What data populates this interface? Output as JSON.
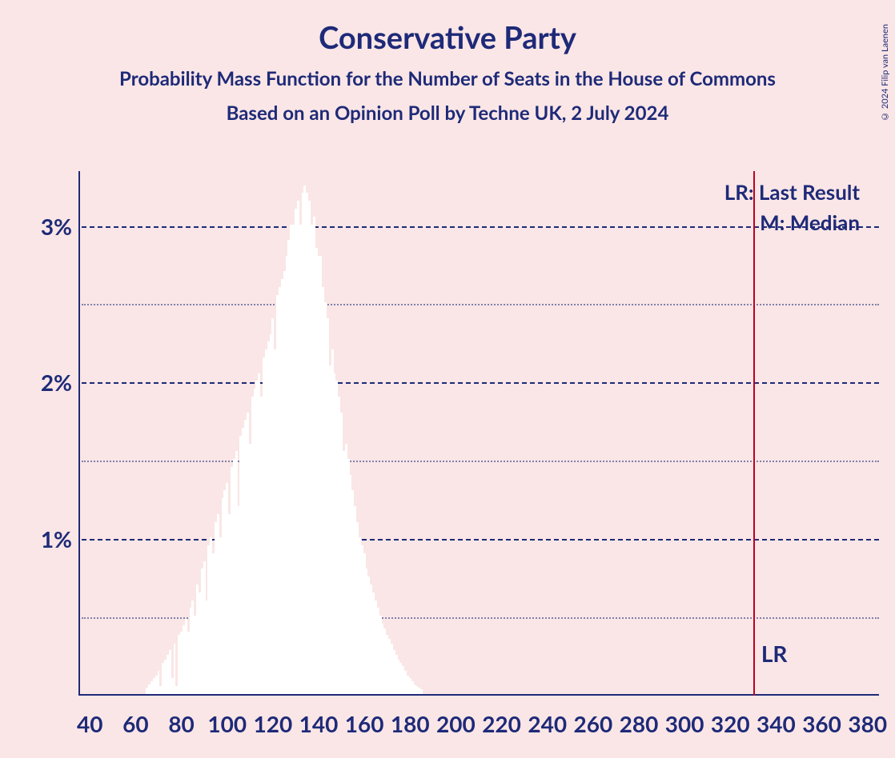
{
  "title": "Conservative Party",
  "subtitle": "Probability Mass Function for the Number of Seats in the House of Commons",
  "subtitle2": "Based on an Opinion Poll by Techne UK, 2 July 2024",
  "copyright": "© 2024 Filip van Laenen",
  "legend": {
    "lr": "LR: Last Result",
    "m": "M: Median"
  },
  "chart": {
    "type": "bar",
    "background_color": "#fae6e6",
    "axis_color": "#1e2a78",
    "text_color": "#1e2a78",
    "grid_major_color": "#1e2a78",
    "grid_minor_color": "rgba(30,42,120,0.55)",
    "lr_line_color": "#c00020",
    "bar_color": "#ffffff",
    "title_fontsize": 38,
    "subtitle_fontsize": 24,
    "tick_fontsize": 28,
    "legend_fontsize": 26,
    "xlim": [
      35,
      385
    ],
    "ylim": [
      0,
      3.35
    ],
    "y_major_ticks": [
      1,
      2,
      3
    ],
    "y_minor_ticks": [
      0.5,
      1.5,
      2.5
    ],
    "y_tick_labels": [
      "1%",
      "2%",
      "3%"
    ],
    "x_ticks": [
      40,
      60,
      80,
      100,
      120,
      140,
      160,
      180,
      200,
      220,
      240,
      260,
      280,
      300,
      320,
      340,
      360,
      380
    ],
    "x_tick_labels": [
      "40",
      "60",
      "80",
      "100",
      "120",
      "140",
      "160",
      "180",
      "200",
      "220",
      "240",
      "260",
      "280",
      "300",
      "320",
      "340",
      "360",
      "380"
    ],
    "lr_value": 330,
    "lr_marker_label": "LR",
    "bar_width_units": 1,
    "bars": [
      {
        "x": 65,
        "y": 0.04
      },
      {
        "x": 66,
        "y": 0.06
      },
      {
        "x": 67,
        "y": 0.08
      },
      {
        "x": 68,
        "y": 0.1
      },
      {
        "x": 69,
        "y": 0.12
      },
      {
        "x": 70,
        "y": 0.15
      },
      {
        "x": 71,
        "y": 0.05
      },
      {
        "x": 72,
        "y": 0.2
      },
      {
        "x": 73,
        "y": 0.22
      },
      {
        "x": 74,
        "y": 0.25
      },
      {
        "x": 75,
        "y": 0.28
      },
      {
        "x": 76,
        "y": 0.1
      },
      {
        "x": 77,
        "y": 0.32
      },
      {
        "x": 78,
        "y": 0.05
      },
      {
        "x": 79,
        "y": 0.38
      },
      {
        "x": 80,
        "y": 0.4
      },
      {
        "x": 81,
        "y": 0.44
      },
      {
        "x": 82,
        "y": 0.48
      },
      {
        "x": 83,
        "y": 0.4
      },
      {
        "x": 84,
        "y": 0.55
      },
      {
        "x": 85,
        "y": 0.6
      },
      {
        "x": 86,
        "y": 0.5
      },
      {
        "x": 87,
        "y": 0.7
      },
      {
        "x": 88,
        "y": 0.65
      },
      {
        "x": 89,
        "y": 0.8
      },
      {
        "x": 90,
        "y": 0.85
      },
      {
        "x": 91,
        "y": 0.6
      },
      {
        "x": 92,
        "y": 0.95
      },
      {
        "x": 93,
        "y": 1.0
      },
      {
        "x": 94,
        "y": 0.9
      },
      {
        "x": 95,
        "y": 1.1
      },
      {
        "x": 96,
        "y": 1.15
      },
      {
        "x": 97,
        "y": 1.0
      },
      {
        "x": 98,
        "y": 1.25
      },
      {
        "x": 99,
        "y": 1.3
      },
      {
        "x": 100,
        "y": 1.35
      },
      {
        "x": 101,
        "y": 1.15
      },
      {
        "x": 102,
        "y": 1.45
      },
      {
        "x": 103,
        "y": 1.5
      },
      {
        "x": 104,
        "y": 1.55
      },
      {
        "x": 105,
        "y": 1.2
      },
      {
        "x": 106,
        "y": 1.65
      },
      {
        "x": 107,
        "y": 1.7
      },
      {
        "x": 108,
        "y": 1.75
      },
      {
        "x": 109,
        "y": 1.8
      },
      {
        "x": 110,
        "y": 1.6
      },
      {
        "x": 111,
        "y": 1.9
      },
      {
        "x": 112,
        "y": 1.95
      },
      {
        "x": 113,
        "y": 2.0
      },
      {
        "x": 114,
        "y": 2.05
      },
      {
        "x": 115,
        "y": 1.9
      },
      {
        "x": 116,
        "y": 2.15
      },
      {
        "x": 117,
        "y": 2.2
      },
      {
        "x": 118,
        "y": 2.25
      },
      {
        "x": 119,
        "y": 2.3
      },
      {
        "x": 120,
        "y": 2.4
      },
      {
        "x": 121,
        "y": 2.2
      },
      {
        "x": 122,
        "y": 2.55
      },
      {
        "x": 123,
        "y": 2.6
      },
      {
        "x": 124,
        "y": 2.65
      },
      {
        "x": 125,
        "y": 2.7
      },
      {
        "x": 126,
        "y": 2.8
      },
      {
        "x": 127,
        "y": 2.9
      },
      {
        "x": 128,
        "y": 3.0
      },
      {
        "x": 129,
        "y": 3.0
      },
      {
        "x": 130,
        "y": 3.1
      },
      {
        "x": 131,
        "y": 3.15
      },
      {
        "x": 132,
        "y": 3.0
      },
      {
        "x": 133,
        "y": 3.2
      },
      {
        "x": 134,
        "y": 3.25
      },
      {
        "x": 135,
        "y": 3.2
      },
      {
        "x": 136,
        "y": 3.15
      },
      {
        "x": 137,
        "y": 3.0
      },
      {
        "x": 138,
        "y": 3.05
      },
      {
        "x": 139,
        "y": 2.85
      },
      {
        "x": 140,
        "y": 2.8
      },
      {
        "x": 141,
        "y": 2.8
      },
      {
        "x": 142,
        "y": 2.6
      },
      {
        "x": 143,
        "y": 2.5
      },
      {
        "x": 144,
        "y": 2.4
      },
      {
        "x": 145,
        "y": 2.1
      },
      {
        "x": 146,
        "y": 2.2
      },
      {
        "x": 147,
        "y": 2.05
      },
      {
        "x": 148,
        "y": 2.0
      },
      {
        "x": 149,
        "y": 1.9
      },
      {
        "x": 150,
        "y": 1.8
      },
      {
        "x": 151,
        "y": 1.55
      },
      {
        "x": 152,
        "y": 1.6
      },
      {
        "x": 153,
        "y": 1.5
      },
      {
        "x": 154,
        "y": 1.4
      },
      {
        "x": 155,
        "y": 1.3
      },
      {
        "x": 156,
        "y": 1.2
      },
      {
        "x": 157,
        "y": 1.1
      },
      {
        "x": 158,
        "y": 1.0
      },
      {
        "x": 159,
        "y": 0.95
      },
      {
        "x": 160,
        "y": 0.9
      },
      {
        "x": 161,
        "y": 0.8
      },
      {
        "x": 162,
        "y": 0.75
      },
      {
        "x": 163,
        "y": 0.7
      },
      {
        "x": 164,
        "y": 0.65
      },
      {
        "x": 165,
        "y": 0.6
      },
      {
        "x": 166,
        "y": 0.55
      },
      {
        "x": 167,
        "y": 0.5
      },
      {
        "x": 168,
        "y": 0.45
      },
      {
        "x": 169,
        "y": 0.42
      },
      {
        "x": 170,
        "y": 0.38
      },
      {
        "x": 171,
        "y": 0.35
      },
      {
        "x": 172,
        "y": 0.32
      },
      {
        "x": 173,
        "y": 0.28
      },
      {
        "x": 174,
        "y": 0.25
      },
      {
        "x": 175,
        "y": 0.22
      },
      {
        "x": 176,
        "y": 0.2
      },
      {
        "x": 177,
        "y": 0.18
      },
      {
        "x": 178,
        "y": 0.15
      },
      {
        "x": 179,
        "y": 0.12
      },
      {
        "x": 180,
        "y": 0.1
      },
      {
        "x": 181,
        "y": 0.08
      },
      {
        "x": 182,
        "y": 0.06
      },
      {
        "x": 183,
        "y": 0.05
      },
      {
        "x": 184,
        "y": 0.04
      },
      {
        "x": 185,
        "y": 0.03
      }
    ]
  }
}
